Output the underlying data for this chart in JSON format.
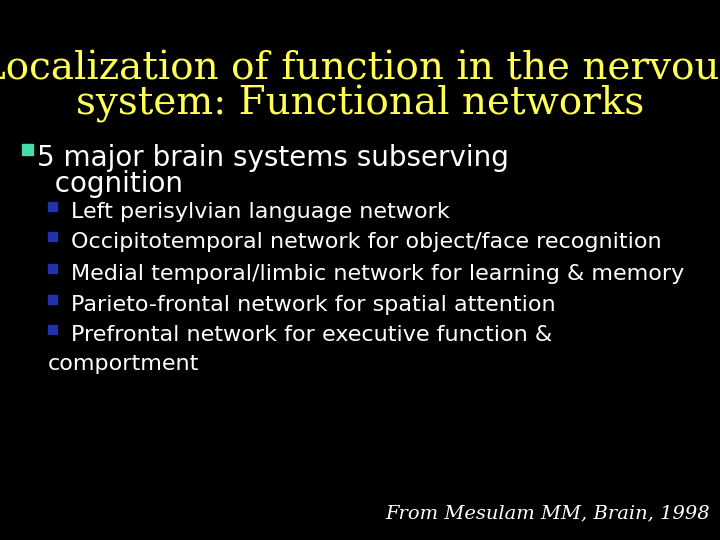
{
  "background_color": "#000000",
  "title_line1": "Localization of function in the nervous",
  "title_line2": "system: Functional networks",
  "title_color": "#ffff55",
  "title_fontsize": 28,
  "main_bullet_color": "#44ddaa",
  "main_bullet_text1": "5 major brain systems subserving",
  "main_bullet_text2": "  cognition",
  "main_bullet_fontsize": 20,
  "sub_bullet_color": "#2233aa",
  "sub_bullets": [
    "Left perisylvian language network",
    "Occipitotemporal network for object/face recognition",
    "Medial temporal/limbic network for learning & memory",
    "Parieto-frontal network for spatial attention",
    "Prefrontal network for executive function &",
    "comportment"
  ],
  "sub_bullet_has_marker": [
    true,
    true,
    true,
    true,
    true,
    false
  ],
  "sub_bullet_fontsize": 16,
  "citation_text": "From Mesulam MM, Brain, 1998",
  "citation_color": "#ffffff",
  "citation_fontsize": 14,
  "text_color": "#ffffff"
}
